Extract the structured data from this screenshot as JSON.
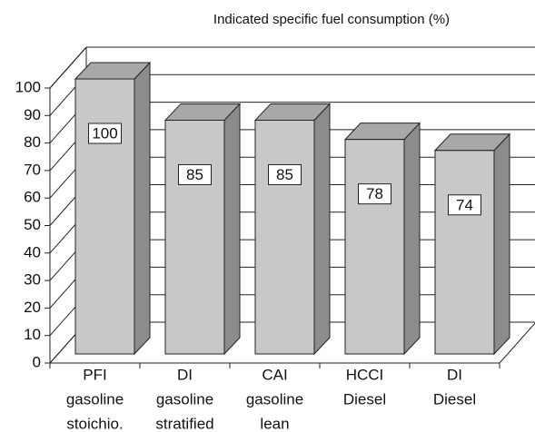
{
  "chart_data": {
    "type": "bar3d",
    "title": "Indicated specific fuel consumption (%)",
    "categories": [
      [
        "PFI",
        "gasoline",
        "stoichio."
      ],
      [
        "DI",
        "gasoline",
        "stratified"
      ],
      [
        "CAI",
        "gasoline",
        "lean"
      ],
      [
        "HCCI",
        "Diesel"
      ],
      [
        "DI",
        "Diesel"
      ]
    ],
    "values": [
      100,
      85,
      85,
      78,
      74
    ],
    "color": "#c8c8c8",
    "ylim": [
      0,
      100
    ],
    "yticks": [
      0,
      10,
      20,
      30,
      40,
      50,
      60,
      70,
      80,
      90,
      100
    ],
    "grid": true
  }
}
